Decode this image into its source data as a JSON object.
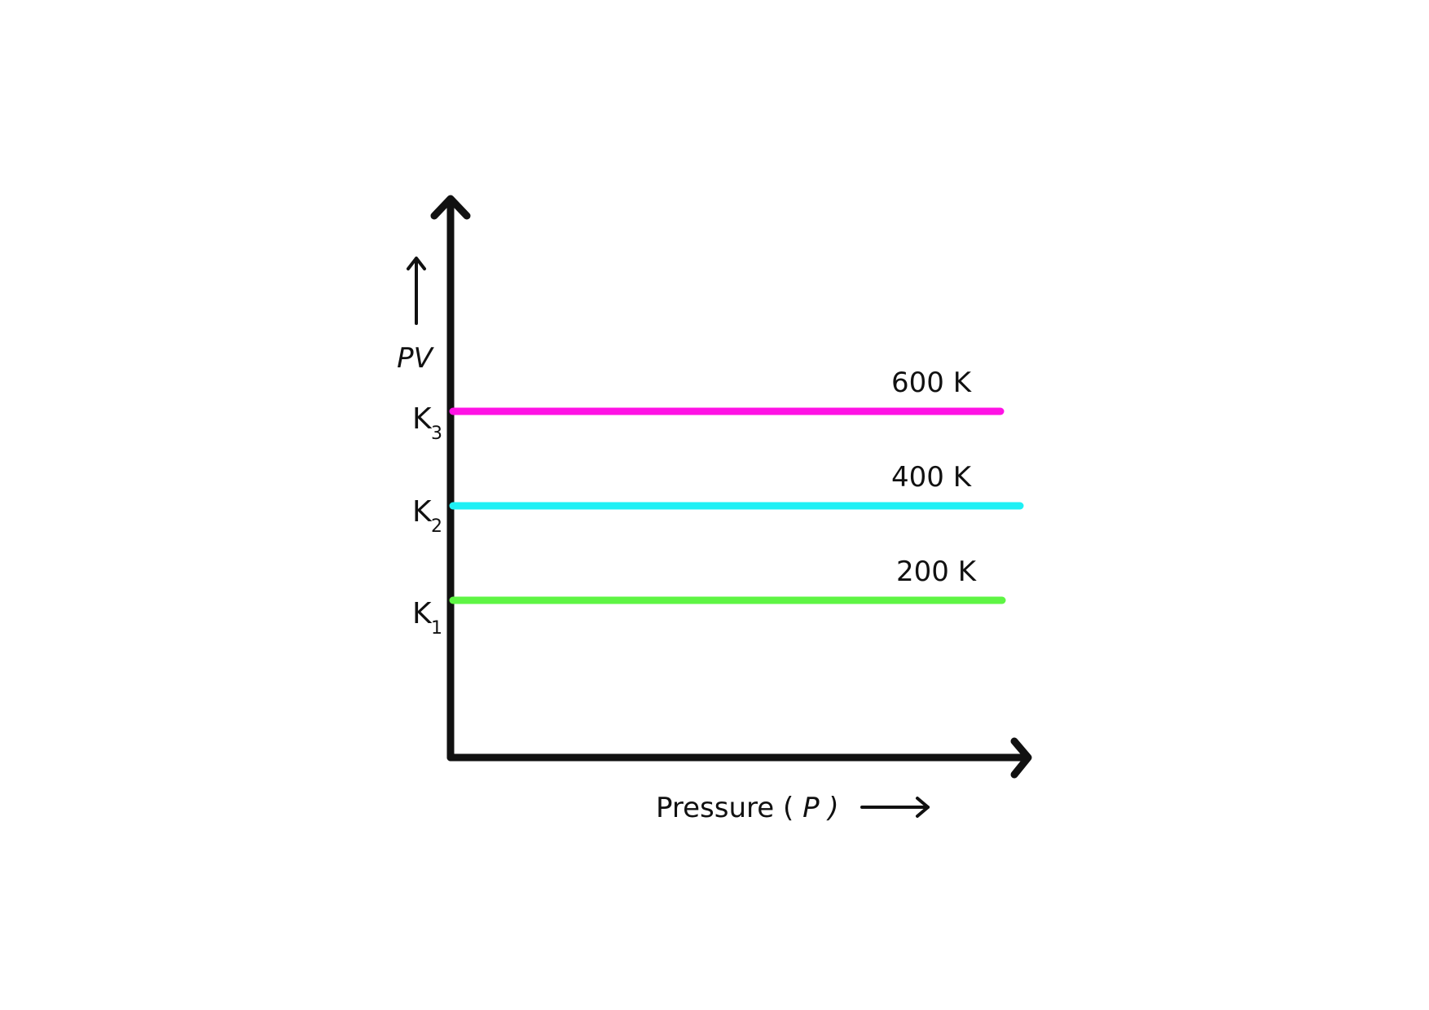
{
  "chart_data": {
    "type": "line",
    "xlabel": "Pressure",
    "xlabel_symbol": "P",
    "ylabel": "PV",
    "x_ticks": [],
    "y_ticks": [
      {
        "base": "K",
        "sub": "1",
        "value": 1
      },
      {
        "base": "K",
        "sub": "2",
        "value": 2
      },
      {
        "base": "K",
        "sub": "3",
        "value": 3
      }
    ],
    "series": [
      {
        "name": "600 K",
        "value": 3,
        "color": "#ff12e5"
      },
      {
        "name": "400 K",
        "value": 2,
        "color": "#1ef0f5"
      },
      {
        "name": "200 K",
        "value": 1,
        "color": "#5ef544"
      }
    ],
    "axis_color": "#111111"
  }
}
